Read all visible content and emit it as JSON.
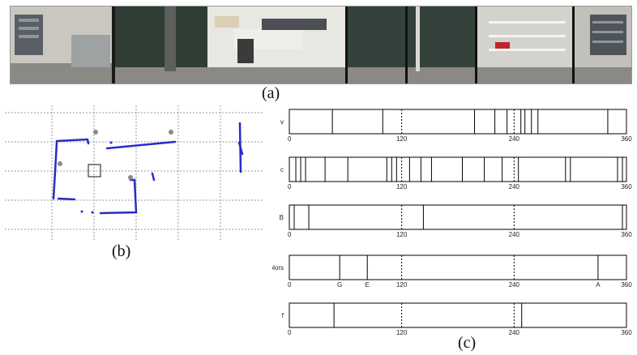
{
  "captions": {
    "a": "(a)",
    "b": "(b)",
    "c": "(c)"
  },
  "strips": [
    {
      "label": "v",
      "lines": [
        0,
        53,
        115,
        228,
        253,
        268,
        285,
        290,
        298,
        306,
        392,
        415
      ]
    },
    {
      "label": "c",
      "lines": [
        0,
        8,
        14,
        20,
        44,
        72,
        120,
        126,
        132,
        148,
        162,
        175,
        213,
        240,
        262,
        282,
        340,
        346,
        404,
        410,
        415
      ]
    },
    {
      "label": "B",
      "lines": [
        0,
        6,
        24,
        165,
        410,
        415
      ]
    },
    {
      "label": "colors",
      "lines": [
        0,
        62,
        96,
        380,
        415
      ],
      "marks": [
        {
          "text": "G",
          "at": 62
        },
        {
          "text": "E",
          "at": 96
        },
        {
          "text": "A",
          "at": 380
        }
      ]
    },
    {
      "label": "f",
      "lines": [
        0,
        55,
        286,
        415
      ]
    }
  ],
  "ticks": [
    "0",
    "120",
    "240",
    "360"
  ],
  "colors": {
    "map_wall": "#2b2bc8",
    "grid": "#9a9a9a",
    "strip_line": "#000000"
  }
}
